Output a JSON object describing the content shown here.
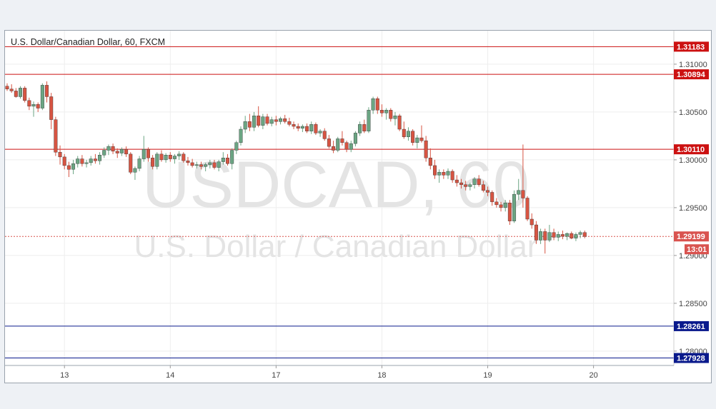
{
  "chart_data": {
    "type": "candlestick",
    "title": "U.S. Dollar/Canadian Dollar, 60, FXCM",
    "watermark": {
      "symbol": "USDCAD, 60",
      "description": "U.S. Dollar / Canadian Dollar"
    },
    "ylim": [
      1.2785,
      1.3135
    ],
    "y_ticks": [
      "1.31000",
      "1.30500",
      "1.30000",
      "1.29500",
      "1.29000",
      "1.28500",
      "1.28000"
    ],
    "x_ticks": [
      {
        "label": "13",
        "index": 13
      },
      {
        "label": "14",
        "index": 37
      },
      {
        "label": "17",
        "index": 61
      },
      {
        "label": "18",
        "index": 85
      },
      {
        "label": "19",
        "index": 109
      },
      {
        "label": "20",
        "index": 133
      }
    ],
    "levels": [
      {
        "price": 1.31183,
        "label": "1.31183",
        "color": "#cc1111"
      },
      {
        "price": 1.30894,
        "label": "1.30894",
        "color": "#cc1111"
      },
      {
        "price": 1.3011,
        "label": "1.30110",
        "color": "#cc1111"
      },
      {
        "price": 1.28261,
        "label": "1.28261",
        "color": "#0a1a8c"
      },
      {
        "price": 1.27928,
        "label": "1.27928",
        "color": "#0a1a8c"
      }
    ],
    "last_price": {
      "price": 1.29199,
      "label": "1.29199",
      "countdown": "13:01",
      "color": "#d9534f"
    },
    "bull_color": "#6ba583",
    "bear_color": "#d75442",
    "candles_ohlc": [
      [
        1.3077,
        1.308,
        1.3072,
        1.3074
      ],
      [
        1.3074,
        1.3079,
        1.307,
        1.3072
      ],
      [
        1.3072,
        1.3075,
        1.3065,
        1.3066
      ],
      [
        1.3066,
        1.3077,
        1.3064,
        1.3075
      ],
      [
        1.3075,
        1.3077,
        1.306,
        1.3062
      ],
      [
        1.3062,
        1.3065,
        1.3052,
        1.3056
      ],
      [
        1.3056,
        1.3061,
        1.3045,
        1.3058
      ],
      [
        1.3058,
        1.306,
        1.305,
        1.3054
      ],
      [
        1.3054,
        1.308,
        1.3052,
        1.3078
      ],
      [
        1.3078,
        1.3082,
        1.306,
        1.3066
      ],
      [
        1.3066,
        1.307,
        1.3032,
        1.3042
      ],
      [
        1.3042,
        1.3045,
        1.3004,
        1.3008
      ],
      [
        1.3008,
        1.3015,
        1.2995,
        1.3003
      ],
      [
        1.3003,
        1.3006,
        1.299,
        1.2994
      ],
      [
        1.2994,
        1.2998,
        1.2982,
        1.299
      ],
      [
        1.299,
        1.3,
        1.2985,
        1.2996
      ],
      [
        1.2996,
        1.3004,
        1.2992,
        1.3001
      ],
      [
        1.3001,
        1.3005,
        1.2993,
        1.2996
      ],
      [
        1.2996,
        1.3,
        1.2992,
        1.2997
      ],
      [
        1.2997,
        1.3004,
        1.2994,
        1.3001
      ],
      [
        1.3001,
        1.3006,
        1.2996,
        1.2999
      ],
      [
        1.2999,
        1.3008,
        1.2995,
        1.3005
      ],
      [
        1.3005,
        1.3013,
        1.3002,
        1.301
      ],
      [
        1.301,
        1.3016,
        1.3005,
        1.3014
      ],
      [
        1.3014,
        1.3017,
        1.3006,
        1.3009
      ],
      [
        1.3009,
        1.3012,
        1.3002,
        1.3007
      ],
      [
        1.3007,
        1.3013,
        1.3004,
        1.3011
      ],
      [
        1.3011,
        1.3014,
        1.3003,
        1.3006
      ],
      [
        1.3006,
        1.3008,
        1.2985,
        1.2987
      ],
      [
        1.2987,
        1.2993,
        1.2979,
        1.2991
      ],
      [
        1.2991,
        1.3004,
        1.2988,
        1.3001
      ],
      [
        1.3001,
        1.3025,
        1.2998,
        1.3011
      ],
      [
        1.3011,
        1.3013,
        1.2998,
        1.3002
      ],
      [
        1.3002,
        1.3005,
        1.299,
        1.2993
      ],
      [
        1.2993,
        1.3008,
        1.299,
        1.3006
      ],
      [
        1.3006,
        1.301,
        1.2998,
        1.3
      ],
      [
        1.3,
        1.3007,
        1.2997,
        1.3005
      ],
      [
        1.3005,
        1.3008,
        1.2998,
        1.3001
      ],
      [
        1.3001,
        1.3006,
        1.2996,
        1.3004
      ],
      [
        1.3004,
        1.3009,
        1.3,
        1.3006
      ],
      [
        1.3006,
        1.3008,
        1.2997,
        1.2999
      ],
      [
        1.2999,
        1.3003,
        1.2994,
        1.2997
      ],
      [
        1.2997,
        1.3001,
        1.2992,
        1.2994
      ],
      [
        1.2994,
        1.2998,
        1.2991,
        1.2995
      ],
      [
        1.2995,
        1.2998,
        1.299,
        1.2993
      ],
      [
        1.2993,
        1.2997,
        1.2988,
        1.2995
      ],
      [
        1.2995,
        1.3,
        1.2991,
        1.2997
      ],
      [
        1.2997,
        1.3,
        1.299,
        1.2992
      ],
      [
        1.2992,
        1.3,
        1.2988,
        1.2998
      ],
      [
        1.2998,
        1.3008,
        1.2995,
        1.3002
      ],
      [
        1.3002,
        1.3006,
        1.2994,
        1.2996
      ],
      [
        1.2996,
        1.3012,
        1.299,
        1.301
      ],
      [
        1.301,
        1.302,
        1.3006,
        1.3018
      ],
      [
        1.3018,
        1.3035,
        1.3015,
        1.3032
      ],
      [
        1.3032,
        1.3046,
        1.3028,
        1.304
      ],
      [
        1.304,
        1.3048,
        1.303,
        1.3034
      ],
      [
        1.3034,
        1.305,
        1.303,
        1.3046
      ],
      [
        1.3046,
        1.3056,
        1.3034,
        1.3036
      ],
      [
        1.3036,
        1.3048,
        1.3032,
        1.3045
      ],
      [
        1.3045,
        1.3048,
        1.3036,
        1.3038
      ],
      [
        1.3038,
        1.3045,
        1.3035,
        1.3042
      ],
      [
        1.3042,
        1.3046,
        1.3036,
        1.304
      ],
      [
        1.304,
        1.3045,
        1.3037,
        1.3043
      ],
      [
        1.3043,
        1.3047,
        1.3038,
        1.304
      ],
      [
        1.304,
        1.3044,
        1.3035,
        1.3037
      ],
      [
        1.3037,
        1.304,
        1.3032,
        1.3035
      ],
      [
        1.3035,
        1.3038,
        1.303,
        1.3033
      ],
      [
        1.3033,
        1.3037,
        1.3029,
        1.3035
      ],
      [
        1.3035,
        1.3038,
        1.3028,
        1.303
      ],
      [
        1.303,
        1.304,
        1.3027,
        1.3037
      ],
      [
        1.3037,
        1.3039,
        1.3026,
        1.3028
      ],
      [
        1.3028,
        1.3032,
        1.3024,
        1.303
      ],
      [
        1.303,
        1.3033,
        1.302,
        1.3022
      ],
      [
        1.3022,
        1.3026,
        1.3012,
        1.3014
      ],
      [
        1.3014,
        1.302,
        1.3007,
        1.301
      ],
      [
        1.301,
        1.3024,
        1.3008,
        1.3022
      ],
      [
        1.3022,
        1.303,
        1.3015,
        1.3018
      ],
      [
        1.3018,
        1.302,
        1.3008,
        1.3011
      ],
      [
        1.3011,
        1.302,
        1.3008,
        1.3017
      ],
      [
        1.3017,
        1.303,
        1.3014,
        1.3028
      ],
      [
        1.3028,
        1.304,
        1.3025,
        1.3037
      ],
      [
        1.3037,
        1.3042,
        1.3028,
        1.303
      ],
      [
        1.303,
        1.3055,
        1.3028,
        1.3052
      ],
      [
        1.3052,
        1.3066,
        1.3048,
        1.3064
      ],
      [
        1.3064,
        1.3066,
        1.3048,
        1.3052
      ],
      [
        1.3052,
        1.3058,
        1.3045,
        1.3049
      ],
      [
        1.3049,
        1.3054,
        1.3042,
        1.3052
      ],
      [
        1.3052,
        1.3054,
        1.304,
        1.3043
      ],
      [
        1.3043,
        1.305,
        1.3036,
        1.3046
      ],
      [
        1.3046,
        1.3048,
        1.303,
        1.3032
      ],
      [
        1.3032,
        1.304,
        1.3022,
        1.3024
      ],
      [
        1.3024,
        1.3034,
        1.302,
        1.303
      ],
      [
        1.303,
        1.3032,
        1.3015,
        1.3018
      ],
      [
        1.3018,
        1.3026,
        1.3012,
        1.3023
      ],
      [
        1.3023,
        1.3036,
        1.3018,
        1.302
      ],
      [
        1.302,
        1.3025,
        1.2998,
        1.3002
      ],
      [
        1.3002,
        1.3012,
        1.299,
        1.2994
      ],
      [
        1.2994,
        1.3,
        1.298,
        1.2984
      ],
      [
        1.2984,
        1.299,
        1.2976,
        1.2987
      ],
      [
        1.2987,
        1.299,
        1.298,
        1.2984
      ],
      [
        1.2984,
        1.2991,
        1.298,
        1.2988
      ],
      [
        1.2988,
        1.299,
        1.2976,
        1.2979
      ],
      [
        1.2979,
        1.2984,
        1.2972,
        1.2976
      ],
      [
        1.2976,
        1.298,
        1.297,
        1.2974
      ],
      [
        1.2974,
        1.2978,
        1.2968,
        1.2972
      ],
      [
        1.2972,
        1.2976,
        1.2968,
        1.2974
      ],
      [
        1.2974,
        1.2982,
        1.297,
        1.298
      ],
      [
        1.298,
        1.2984,
        1.2972,
        1.2974
      ],
      [
        1.2974,
        1.2978,
        1.2966,
        1.2968
      ],
      [
        1.2968,
        1.2972,
        1.2962,
        1.2966
      ],
      [
        1.2966,
        1.2968,
        1.2952,
        1.2956
      ],
      [
        1.2956,
        1.296,
        1.295,
        1.2953
      ],
      [
        1.2953,
        1.2956,
        1.2946,
        1.295
      ],
      [
        1.295,
        1.2958,
        1.2946,
        1.2955
      ],
      [
        1.2955,
        1.2958,
        1.2932,
        1.2936
      ],
      [
        1.2936,
        1.2968,
        1.2934,
        1.2964
      ],
      [
        1.2964,
        1.298,
        1.2958,
        1.2968
      ],
      [
        1.2968,
        1.3016,
        1.295,
        1.296
      ],
      [
        1.296,
        1.2962,
        1.2936,
        1.2938
      ],
      [
        1.2938,
        1.2944,
        1.2928,
        1.2932
      ],
      [
        1.2932,
        1.2936,
        1.2912,
        1.2916
      ],
      [
        1.2916,
        1.2928,
        1.2912,
        1.2925
      ],
      [
        1.2925,
        1.2928,
        1.2902,
        1.2916
      ],
      [
        1.2916,
        1.2932,
        1.2914,
        1.2924
      ],
      [
        1.2924,
        1.2928,
        1.2916,
        1.2919
      ],
      [
        1.2919,
        1.2925,
        1.2915,
        1.2922
      ],
      [
        1.2922,
        1.2926,
        1.2917,
        1.292
      ],
      [
        1.292,
        1.2924,
        1.2916,
        1.2923
      ],
      [
        1.2923,
        1.2925,
        1.2917,
        1.2918
      ],
      [
        1.2918,
        1.2924,
        1.2915,
        1.2922
      ],
      [
        1.2922,
        1.2926,
        1.2918,
        1.2924
      ],
      [
        1.2924,
        1.2926,
        1.2918,
        1.29199
      ]
    ]
  }
}
